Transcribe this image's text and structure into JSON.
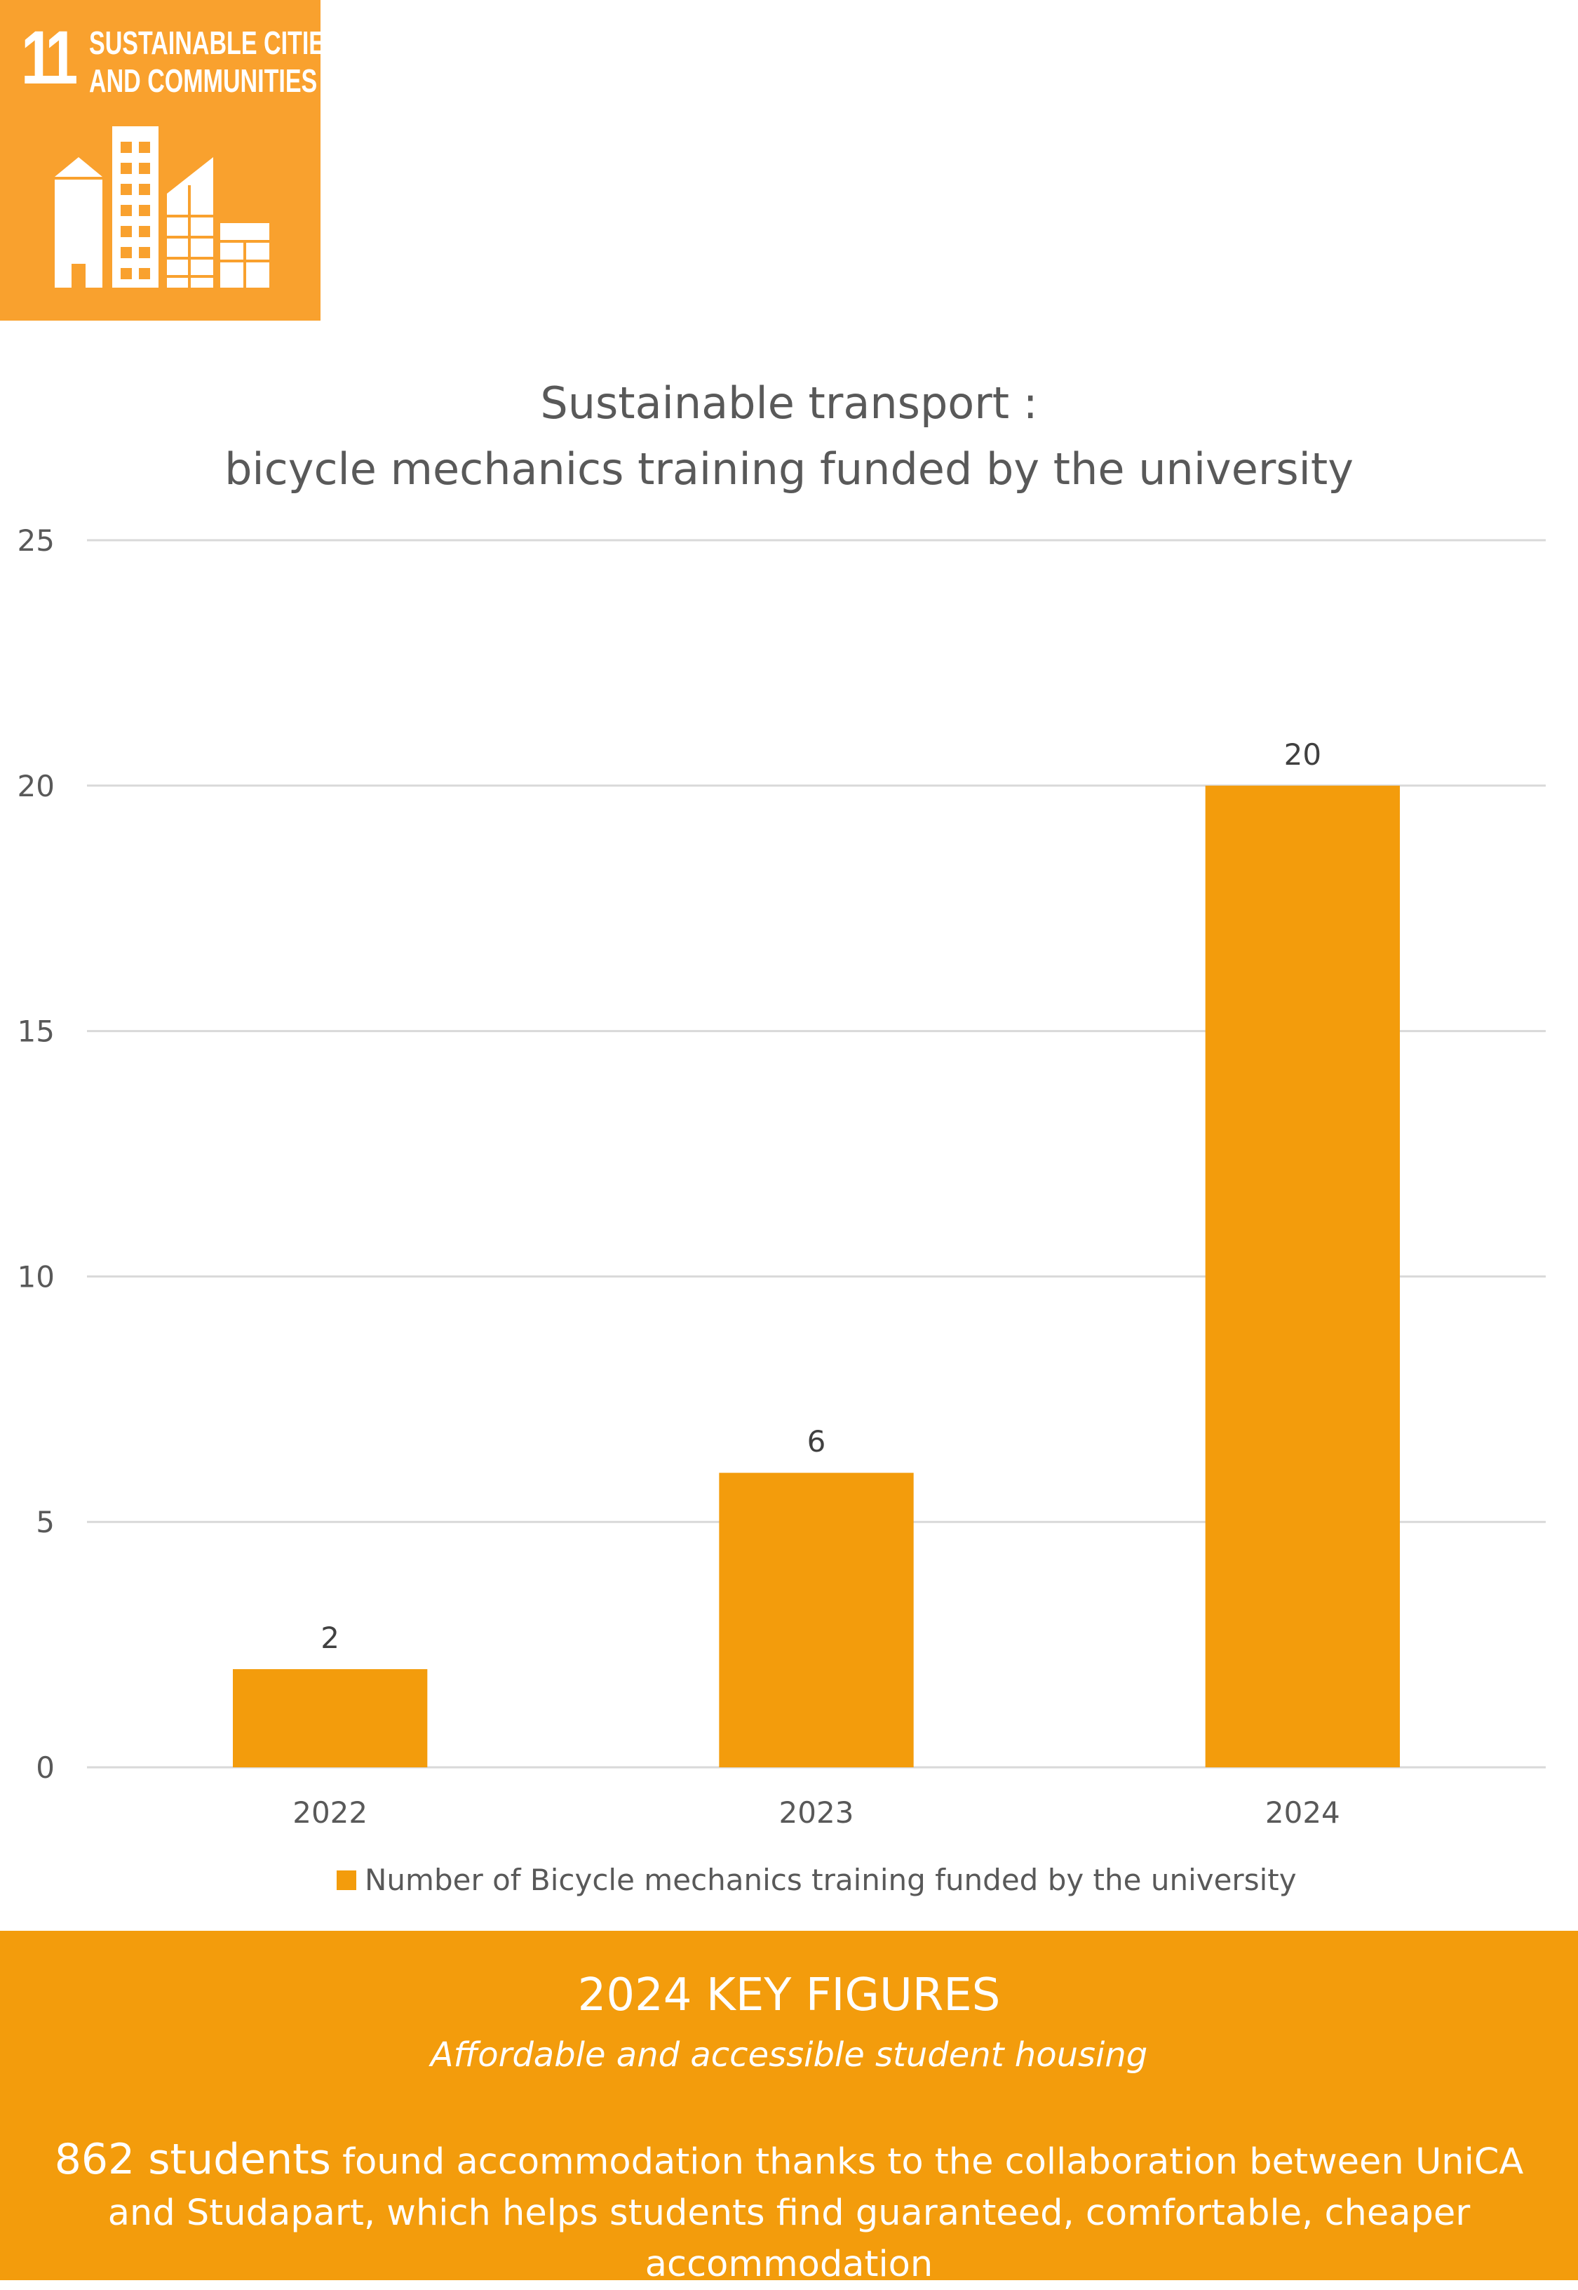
{
  "sdg_badge": {
    "number": "11",
    "title_line1": "SUSTAINABLE CITIES",
    "title_line2": "AND COMMUNITIES",
    "icon": "city-buildings-icon",
    "color": "#F9A12E"
  },
  "chart_data": {
    "type": "bar",
    "title_line1": "Sustainable transport :",
    "title_line2": "bicycle mechanics training funded by the university",
    "categories": [
      "2022",
      "2023",
      "2024"
    ],
    "series": [
      {
        "name": "Number of Bicycle mechanics training funded by the university",
        "values": [
          2,
          6,
          20
        ],
        "color": "#F39C0C"
      }
    ],
    "ylim": [
      0,
      25
    ],
    "yticks": [
      0,
      5,
      10,
      15,
      20,
      25
    ],
    "xlabel": "",
    "ylabel": "",
    "grid": true,
    "legend": "bottom"
  },
  "footer": {
    "heading": "2024 KEY FIGURES",
    "subheading": "Affordable and accessible student housing",
    "highlight": "862 students",
    "body": " found accommodation thanks to the collaboration between UniCA and Studapart, which helps students find guaranteed, comfortable, cheaper accommodation",
    "color": "#F39C0C"
  }
}
